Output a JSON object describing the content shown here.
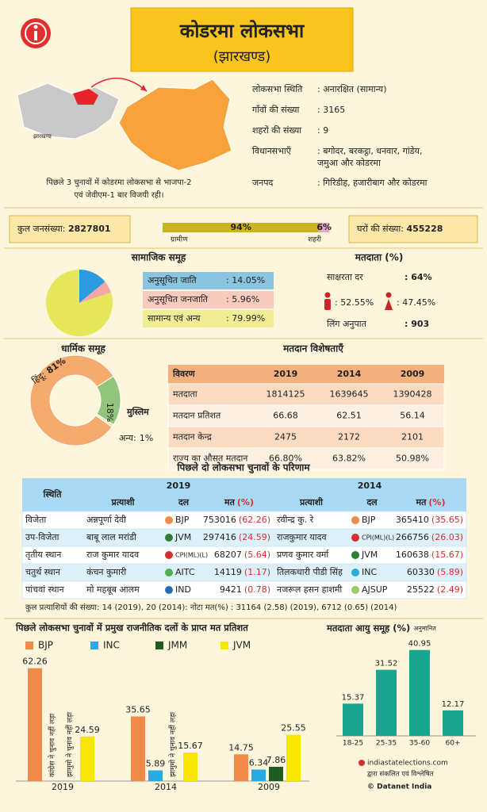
{
  "header": {
    "title": "कोडरमा लोकसभा",
    "subtitle": "(झारखण्ड)"
  },
  "map": {
    "label": "झारखण्ड",
    "caption_lines": [
      "पिछले 3 चुनावों में कोडरमा लोकसभा से भाजपा-2",
      "एवं जेवीएम-1 बार विजयी रही।"
    ]
  },
  "info": [
    {
      "label": "लोकसभा स्थिति",
      "value": [
        ":  अनारक्षित (सामान्य)"
      ]
    },
    {
      "label": "गाँवों की संख्या",
      "value": [
        ":  3165"
      ]
    },
    {
      "label": "शहरों की संख्या",
      "value": [
        ":  9"
      ]
    },
    {
      "label": "विधानसभाएँ",
      "value": [
        ":  बगोदर, बरकट्ठा, धनवार, गांडेय,",
        "   जमुआ और कोडरमा"
      ]
    },
    {
      "label": "जनपद",
      "value": [
        ":  गिरिडीह, हजारीबाग और कोडरमा"
      ]
    }
  ],
  "population": {
    "total_label": "कुल जनसंख्या:",
    "total": "2827801",
    "households_label": "घरों की संख्या:",
    "households": "455228"
  },
  "voters": {
    "title": "मतदाता (%)",
    "literacy_label": "साक्षरता दर",
    "literacy": ":  64%",
    "male": ": 52.55%",
    "female": ": 47.45%",
    "sex_ratio_label": "लिंग अनुपात",
    "sex_ratio": ":  903"
  },
  "voting": {
    "title": "मतदान विशेषताएँ",
    "header": [
      "विवरण",
      "2019",
      "2014",
      "2009"
    ],
    "rows": [
      [
        "मतदाता",
        "1814125",
        "1639645",
        "1390428"
      ],
      [
        "मतदान प्रतिशत",
        "66.68",
        "62.51",
        "56.14"
      ],
      [
        "मतदान केन्द्र",
        "2475",
        "2172",
        "2101"
      ],
      [
        "राज्य का औसत मतदान",
        "66.80%",
        "63.82%",
        "50.98%"
      ]
    ]
  },
  "results": {
    "title": "पिछले दो लोकसभा चुनावों के परिणाम",
    "position_header": "स्थिति",
    "years": [
      "2019",
      "2014"
    ],
    "columns": [
      "प्रत्याशी",
      "दल",
      "मत"
    ],
    "pct_header": "(%)",
    "rows": [
      [
        "विजेता",
        "अन्नपूर्णा देवी",
        "BJP",
        "753016",
        "(62.26)",
        "रवीन्द्र कु. रे",
        "BJP",
        "365410",
        "(35.65)"
      ],
      [
        "उप-विजेता",
        "बाबू लाल मरांडी",
        "JVM",
        "297416",
        "(24.59)",
        "राजकुमार यादव",
        "CPI(ML)(L)",
        "266756",
        "(26.03)"
      ],
      [
        "तृतीय स्थान",
        "राज कुमार यादव",
        "CPI(ML)(L)",
        "68207",
        "(5.64)",
        "प्रणव कुमार वर्मा",
        "JVM",
        "160638",
        "(15.67)"
      ],
      [
        "चतुर्थ स्थान",
        "कंचन कुमारी",
        "AITC",
        "14119",
        "(1.17)",
        "तिलकधारी पीडी सिंह",
        "INC",
        "60330",
        "(5.89)"
      ],
      [
        "पांचवां स्थान",
        "मो महबूब आलम",
        "IND",
        "9421",
        "(0.78)",
        "नजरूल हसन हाशमी",
        "AJSUP",
        "25522",
        "(2.49)"
      ]
    ],
    "footer": "कुल प्रत्याशियों की संख्या: 14 (2019), 20 (2014): नोटा मत(%) : 31164 (2.58) (2019), 6712 (0.65) (2014)"
  },
  "credits": {
    "site": "indiastatelections.com",
    "compiled": "द्वारा संकलित एवं विश्लेषित",
    "copyright": "© Datanet India"
  },
  "chart_data": [
    {
      "type": "split-bar",
      "categories": [
        "ग्रामीण",
        "शहरी"
      ],
      "values": [
        94,
        6
      ],
      "value_labels": [
        "94%",
        "6%"
      ],
      "colors": [
        "#cdb321",
        "#e7a3c9"
      ],
      "xlim": [
        0,
        100
      ]
    },
    {
      "type": "pie",
      "title": "सामाजिक समूह",
      "categories": [
        "अनुसूचित जाति",
        "अनुसूचित जनजाति",
        "सामान्य एवं अन्य"
      ],
      "values": [
        14.05,
        5.96,
        79.99
      ],
      "value_labels": [
        ":  14.05%",
        ":  5.96%",
        ":  79.99%"
      ],
      "colors": [
        "#2b9be0",
        "#f4a7a7",
        "#e6e65a"
      ]
    },
    {
      "type": "donut",
      "title": "धार्मिक समूह",
      "categories": [
        "हिंदू:",
        "मुस्लिम",
        "अन्य:"
      ],
      "values": [
        81,
        18,
        1
      ],
      "value_labels": [
        "81%",
        "18%",
        "1%"
      ],
      "colors": [
        "#f5aa6e",
        "#93c47d",
        "#f5e6b0"
      ]
    },
    {
      "type": "grouped-bar",
      "title": "पिछले लोकसभा चुनावों में प्रमुख राजनीतिक दलों के प्राप्त मत प्रतिशत",
      "categories": [
        "2019",
        "2014",
        "2009"
      ],
      "ylim": [
        0,
        70
      ],
      "series": [
        {
          "name": "BJP",
          "color": "#f08a4b",
          "values": [
            62.26,
            35.65,
            14.75
          ]
        },
        {
          "name": "INC",
          "color": "#29abe2",
          "values": [
            null,
            5.89,
            6.34
          ],
          "notes": [
            "कांग्रेस ने चुनाव नहीं लड़ा",
            null,
            null
          ]
        },
        {
          "name": "JMM",
          "color": "#1f5a1f",
          "values": [
            null,
            null,
            7.86
          ],
          "notes": [
            "झामुमो ने चुनाव नहीं लड़ा",
            "झामुमो ने चुनाव नहीं लड़ा",
            null
          ]
        },
        {
          "name": "JVM",
          "color": "#f7e600",
          "values": [
            24.59,
            15.67,
            25.55
          ]
        }
      ]
    },
    {
      "type": "bar",
      "title": "मतदाता आयु समूह (%)",
      "subtitle": "अनुमानित",
      "categories": [
        "18-25",
        "25-35",
        "35-60",
        "60+"
      ],
      "values": [
        15.37,
        31.52,
        40.95,
        12.17
      ],
      "color": "#1aa58f",
      "ylim": [
        0,
        45
      ]
    }
  ]
}
